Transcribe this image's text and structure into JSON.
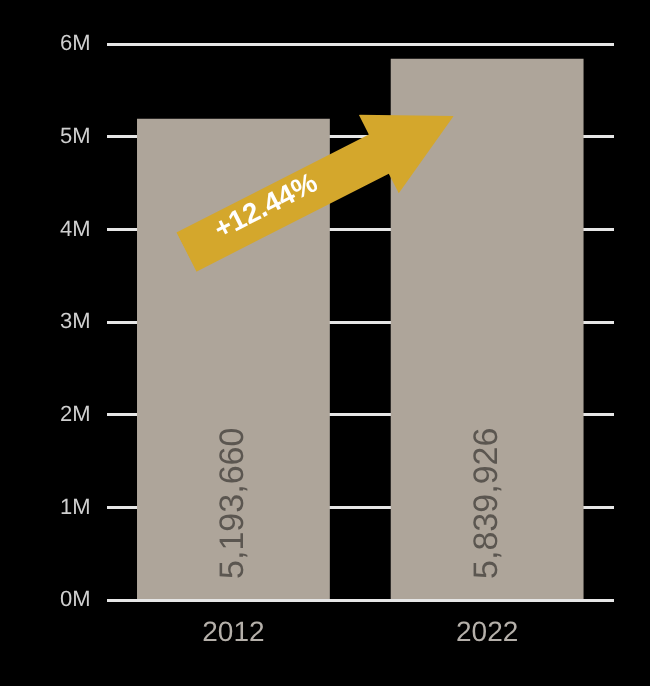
{
  "chart_data": {
    "type": "bar",
    "categories": [
      "2012",
      "2022"
    ],
    "values": [
      5193660,
      5839926
    ],
    "value_labels": [
      "5,193,660",
      "5,839,926"
    ],
    "color": "#aea59a",
    "ylim": [
      0,
      6000000
    ],
    "yticks": [
      {
        "value": 0,
        "label": "0M"
      },
      {
        "value": 1000000,
        "label": "1M"
      },
      {
        "value": 2000000,
        "label": "2M"
      },
      {
        "value": 3000000,
        "label": "3M"
      },
      {
        "value": 4000000,
        "label": "4M"
      },
      {
        "value": 5000000,
        "label": "5M"
      },
      {
        "value": 6000000,
        "label": "6M"
      }
    ],
    "grid": "y",
    "legend": false,
    "annotations": [
      "+12.44%"
    ]
  }
}
